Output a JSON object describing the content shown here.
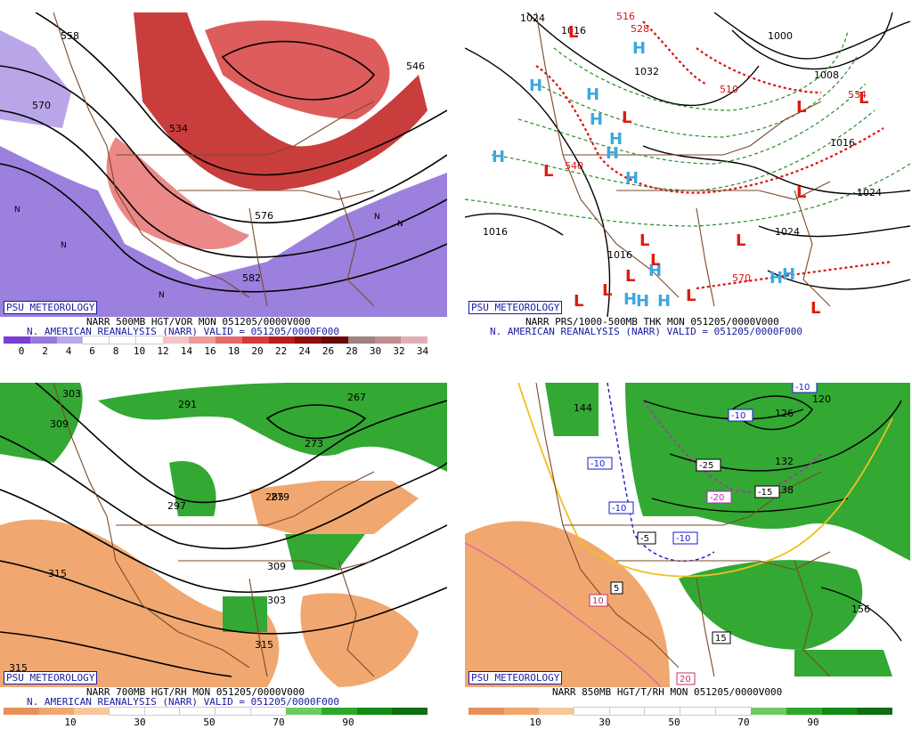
{
  "badge": "PSU METEOROLOGY",
  "panels": {
    "tl": {
      "caption1": "NARR 500MB HGT/VOR MON 051205/0000V000",
      "caption2": "N. AMERICAN REANALYSIS (NARR) VALID = 051205/0000F000",
      "colorbar": [
        "#7a3fd0",
        "#9a78e0",
        "#b8a8e8",
        "#ffffff",
        "#ffffff",
        "#ffffff",
        "#f4c4c4",
        "#ee9a9a",
        "#e66a6a",
        "#d63a3a",
        "#b81c1c",
        "#8e0d0d",
        "#6a0808",
        "#a08080",
        "#c09090",
        "#e0b0b8"
      ],
      "ticks": [
        "0",
        "2",
        "4",
        "6",
        "8",
        "10",
        "12",
        "14",
        "16",
        "18",
        "20",
        "22",
        "24",
        "26",
        "28",
        "30",
        "32",
        "34"
      ],
      "labels": [
        "558",
        "570",
        "546",
        "534",
        "576",
        "582",
        "N",
        "N",
        "N",
        "N",
        "N"
      ]
    },
    "tr": {
      "caption1": "NARR PRS/1000-500MB THK MON 051205/0000V000",
      "caption2": "N. AMERICAN REANALYSIS (NARR) VALID = 051205/0000F000",
      "labels": [
        "1024",
        "1016",
        "1032",
        "1000",
        "1008",
        "1024",
        "1016",
        "1016",
        "1016",
        "1024",
        "510",
        "540",
        "570",
        "516",
        "528",
        "534"
      ],
      "highs": [
        "H",
        "H",
        "H",
        "H",
        "H",
        "H",
        "H",
        "H",
        "H",
        "H",
        "H",
        "H",
        "H",
        "H"
      ],
      "lows": [
        "L",
        "L",
        "L",
        "L",
        "L",
        "L",
        "L",
        "L",
        "L",
        "L",
        "L",
        "L",
        "L",
        "L"
      ]
    },
    "bl": {
      "caption1": "NARR 700MB HGT/RH MON 051205/0000V000",
      "caption2": "N. AMERICAN REANALYSIS (NARR) VALID = 051205/0000F000",
      "colorbar": [
        "#e8915a",
        "#f0a870",
        "#f7c79a",
        "#ffffff",
        "#ffffff",
        "#ffffff",
        "#ffffff",
        "#ffffff",
        "#6ccb5f",
        "#2ea82a",
        "#138a13",
        "#0f6e0f"
      ],
      "ticks": [
        "10",
        "30",
        "50",
        "70",
        "90"
      ],
      "labels": [
        "303",
        "309",
        "291",
        "267",
        "273",
        "279",
        "285",
        "297",
        "315",
        "309",
        "303",
        "315",
        "315"
      ]
    },
    "br": {
      "caption1": "NARR 850MB HGT/T/RH MON 051205/0000V000",
      "caption2": "",
      "colorbar": [
        "#e8915a",
        "#f0a870",
        "#f7c79a",
        "#ffffff",
        "#ffffff",
        "#ffffff",
        "#ffffff",
        "#ffffff",
        "#6ccb5f",
        "#2ea82a",
        "#138a13",
        "#0f6e0f"
      ],
      "ticks": [
        "10",
        "30",
        "50",
        "70",
        "90"
      ],
      "labels": [
        "144",
        "126",
        "120",
        "132",
        "138",
        "156"
      ],
      "boxes": [
        "-10",
        "-10",
        "-25",
        "-20",
        "-15",
        "-10",
        "-10",
        "-5",
        "-10",
        "5",
        "10",
        "15",
        "20"
      ]
    }
  },
  "colors": {
    "vort_pos": "#c42828",
    "vort_neg": "#7a5ad6",
    "rh_dry": "#f0a870",
    "rh_moist": "#33a833",
    "borders": "#7a4a2a",
    "high_marker": "#39a9e0",
    "low_marker": "#e01b0b",
    "thickness": "#dd1111"
  }
}
